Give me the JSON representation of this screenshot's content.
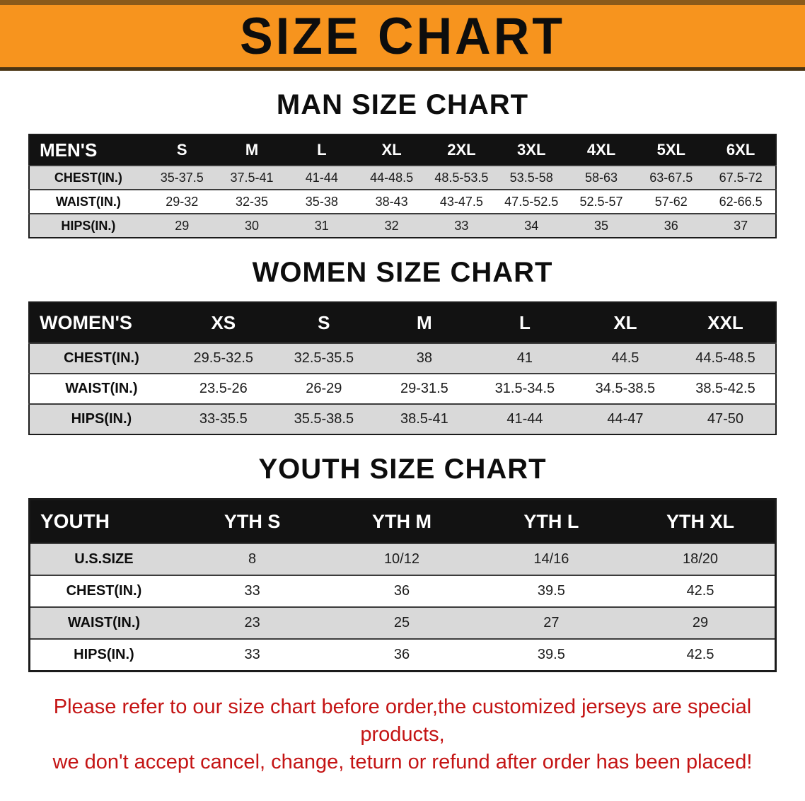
{
  "banner": {
    "title": "SIZE CHART",
    "bg_color": "#f7941e",
    "text_color": "#0d0d0d"
  },
  "sections": [
    {
      "title": "MAN SIZE CHART",
      "table": {
        "header": [
          "MEN'S",
          "S",
          "M",
          "L",
          "XL",
          "2XL",
          "3XL",
          "4XL",
          "5XL",
          "6XL"
        ],
        "rows": [
          [
            "CHEST(IN.)",
            "35-37.5",
            "37.5-41",
            "41-44",
            "44-48.5",
            "48.5-53.5",
            "53.5-58",
            "58-63",
            "63-67.5",
            "67.5-72"
          ],
          [
            "WAIST(IN.)",
            "29-32",
            "32-35",
            "35-38",
            "38-43",
            "43-47.5",
            "47.5-52.5",
            "52.5-57",
            "57-62",
            "62-66.5"
          ],
          [
            "HIPS(IN.)",
            "29",
            "30",
            "31",
            "32",
            "33",
            "34",
            "35",
            "36",
            "37"
          ]
        ]
      }
    },
    {
      "title": "WOMEN SIZE CHART",
      "table": {
        "header": [
          "WOMEN'S",
          "XS",
          "S",
          "M",
          "L",
          "XL",
          "XXL"
        ],
        "rows": [
          [
            "CHEST(IN.)",
            "29.5-32.5",
            "32.5-35.5",
            "38",
            "41",
            "44.5",
            "44.5-48.5"
          ],
          [
            "WAIST(IN.)",
            "23.5-26",
            "26-29",
            "29-31.5",
            "31.5-34.5",
            "34.5-38.5",
            "38.5-42.5"
          ],
          [
            "HIPS(IN.)",
            "33-35.5",
            "35.5-38.5",
            "38.5-41",
            "41-44",
            "44-47",
            "47-50"
          ]
        ]
      }
    },
    {
      "title": "YOUTH SIZE CHART",
      "table": {
        "header": [
          "YOUTH",
          "YTH S",
          "YTH M",
          "YTH L",
          "YTH XL"
        ],
        "rows": [
          [
            "U.S.SIZE",
            "8",
            "10/12",
            "14/16",
            "18/20"
          ],
          [
            "CHEST(IN.)",
            "33",
            "36",
            "39.5",
            "42.5"
          ],
          [
            "WAIST(IN.)",
            "23",
            "25",
            "27",
            "29"
          ],
          [
            "HIPS(IN.)",
            "33",
            "36",
            "39.5",
            "42.5"
          ]
        ]
      }
    }
  ],
  "footer": {
    "line1": "Please refer to our size chart before order,the customized jerseys are special products,",
    "line2": "we don't accept cancel, change, teturn or refund after order has been placed!"
  },
  "colors": {
    "banner_orange": "#f7941e",
    "table_header_black": "#121212",
    "row_stripe_gray": "#d9d9d9",
    "warning_red": "#c41414"
  }
}
